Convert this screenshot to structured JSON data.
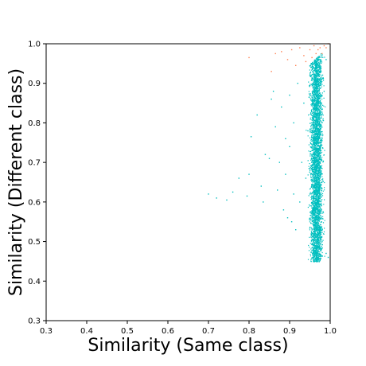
{
  "chart_data": {
    "type": "scatter",
    "title": "",
    "xlabel": "Similarity (Same class)",
    "ylabel": "Similarity (Different class)",
    "xlim": [
      0.3,
      1.0
    ],
    "ylim": [
      0.3,
      1.0
    ],
    "xticks": [
      "0.3",
      "0.4",
      "0.5",
      "0.6",
      "0.7",
      "0.8",
      "0.9",
      "1.0"
    ],
    "yticks": [
      "0.3",
      "0.4",
      "0.5",
      "0.6",
      "0.7",
      "0.8",
      "0.9",
      "1.0"
    ],
    "grid": false,
    "legend": "none",
    "series": [
      {
        "color": "#00bfbf",
        "points": [
          [
            0.7,
            0.62
          ],
          [
            0.72,
            0.61
          ],
          [
            0.745,
            0.605
          ],
          [
            0.76,
            0.625
          ],
          [
            0.775,
            0.66
          ],
          [
            0.795,
            0.615
          ],
          [
            0.8,
            0.67
          ],
          [
            0.805,
            0.765
          ],
          [
            0.82,
            0.82
          ],
          [
            0.83,
            0.64
          ],
          [
            0.835,
            0.6
          ],
          [
            0.84,
            0.72
          ],
          [
            0.85,
            0.71
          ],
          [
            0.855,
            0.86
          ],
          [
            0.86,
            0.88
          ],
          [
            0.865,
            0.79
          ],
          [
            0.87,
            0.63
          ],
          [
            0.875,
            0.7
          ],
          [
            0.88,
            0.84
          ],
          [
            0.885,
            0.58
          ],
          [
            0.89,
            0.67
          ],
          [
            0.89,
            0.76
          ],
          [
            0.895,
            0.56
          ],
          [
            0.9,
            0.74
          ],
          [
            0.9,
            0.87
          ],
          [
            0.905,
            0.55
          ],
          [
            0.91,
            0.62
          ],
          [
            0.91,
            0.8
          ],
          [
            0.915,
            0.53
          ],
          [
            0.92,
            0.9
          ],
          [
            0.925,
            0.6
          ],
          [
            0.93,
            0.7
          ],
          [
            0.935,
            0.85
          ],
          [
            0.94,
            0.66
          ],
          [
            0.945,
            0.78
          ],
          [
            0.95,
            0.62
          ],
          [
            0.95,
            0.92
          ],
          [
            0.955,
            0.73
          ],
          [
            0.96,
            0.58
          ],
          [
            0.96,
            0.84
          ],
          [
            0.965,
            0.69
          ],
          [
            0.97,
            0.52
          ],
          [
            0.97,
            0.94
          ],
          [
            0.975,
            0.64
          ],
          [
            0.98,
            0.76
          ],
          [
            0.98,
            0.5
          ],
          [
            0.985,
            0.88
          ],
          [
            0.99,
            0.47
          ],
          [
            0.99,
            0.96
          ],
          [
            0.995,
            0.46
          ]
        ]
      },
      {
        "color": "#ff7f50",
        "points": [
          [
            0.8,
            0.965
          ],
          [
            0.855,
            0.93
          ],
          [
            0.865,
            0.975
          ],
          [
            0.88,
            0.98
          ],
          [
            0.895,
            0.96
          ],
          [
            0.905,
            0.985
          ],
          [
            0.915,
            0.945
          ],
          [
            0.925,
            0.99
          ],
          [
            0.935,
            0.97
          ],
          [
            0.94,
            0.955
          ],
          [
            0.95,
            0.985
          ],
          [
            0.955,
            0.965
          ],
          [
            0.96,
            0.995
          ],
          [
            0.965,
            0.975
          ],
          [
            0.97,
            0.985
          ],
          [
            0.975,
            0.99
          ],
          [
            0.98,
            0.975
          ],
          [
            0.985,
            0.995
          ],
          [
            0.99,
            0.99
          ],
          [
            0.995,
            1.0
          ]
        ]
      }
    ]
  }
}
